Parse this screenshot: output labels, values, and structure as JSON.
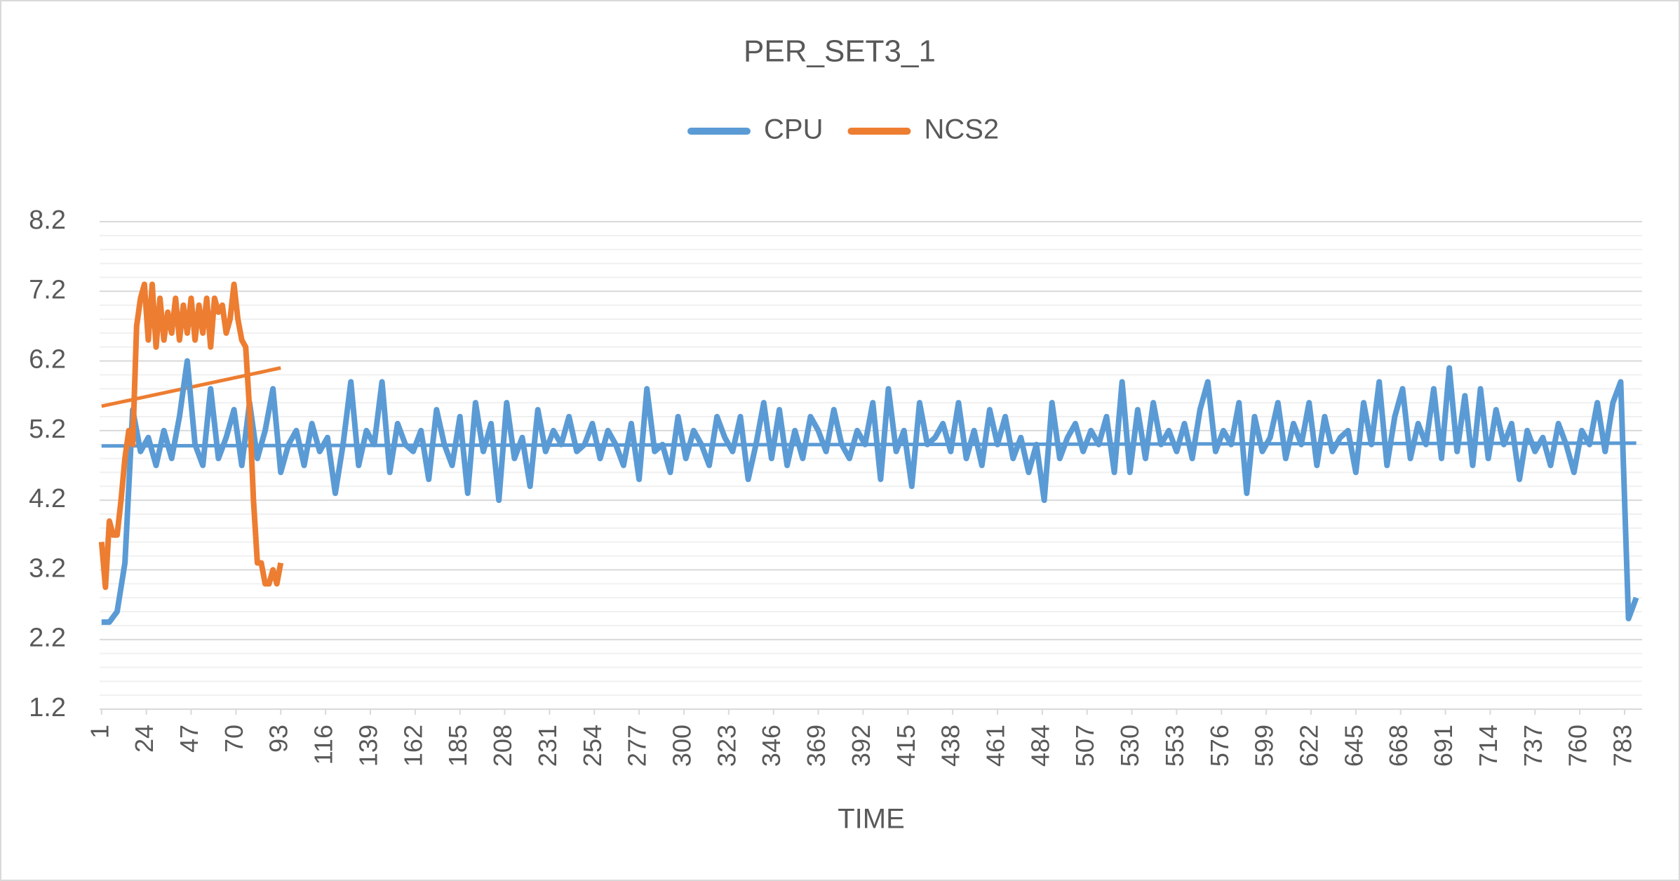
{
  "chart_data": {
    "type": "line",
    "title": "PER_SET3_1",
    "x_label": "TIME",
    "xlim": [
      0,
      792
    ],
    "xticks": [
      1,
      24,
      47,
      70,
      93,
      116,
      139,
      162,
      185,
      208,
      231,
      254,
      277,
      300,
      323,
      346,
      369,
      392,
      415,
      438,
      461,
      484,
      507,
      530,
      553,
      576,
      599,
      622,
      645,
      668,
      691,
      714,
      737,
      760,
      783
    ],
    "ylim": [
      1.2,
      8.2
    ],
    "yticks": [
      1.2,
      2.2,
      3.2,
      4.2,
      5.2,
      6.2,
      7.2,
      8.2
    ],
    "grid": true,
    "minor_grid": true,
    "legend": "top",
    "series": [
      {
        "name": "CPU",
        "color": "#5b9bd5",
        "x": [
          1,
          5,
          9,
          13,
          17,
          21,
          25,
          29,
          33,
          37,
          41,
          45,
          49,
          53,
          57,
          61,
          65,
          69,
          73,
          77,
          81,
          85,
          89,
          93,
          97,
          101,
          105,
          109,
          113,
          117,
          121,
          125,
          129,
          133,
          137,
          141,
          145,
          149,
          153,
          157,
          161,
          165,
          169,
          173,
          177,
          181,
          185,
          189,
          193,
          197,
          201,
          205,
          209,
          213,
          217,
          221,
          225,
          229,
          233,
          237,
          241,
          245,
          249,
          253,
          257,
          261,
          265,
          269,
          273,
          277,
          281,
          285,
          289,
          293,
          297,
          301,
          305,
          309,
          313,
          317,
          321,
          325,
          329,
          333,
          337,
          341,
          345,
          349,
          353,
          357,
          361,
          365,
          369,
          373,
          377,
          381,
          385,
          389,
          393,
          397,
          401,
          405,
          409,
          413,
          417,
          421,
          425,
          429,
          433,
          437,
          441,
          445,
          449,
          453,
          457,
          461,
          465,
          469,
          473,
          477,
          481,
          485,
          489,
          493,
          497,
          501,
          505,
          509,
          513,
          517,
          521,
          525,
          529,
          533,
          537,
          541,
          545,
          549,
          553,
          557,
          561,
          565,
          569,
          573,
          577,
          581,
          585,
          589,
          593,
          597,
          601,
          605,
          609,
          613,
          617,
          621,
          625,
          629,
          633,
          637,
          641,
          645,
          649,
          653,
          657,
          661,
          665,
          669,
          673,
          677,
          681,
          685,
          689,
          693,
          697,
          701,
          705,
          709,
          713,
          717,
          721,
          725,
          729,
          733,
          737,
          741,
          745,
          749,
          753,
          757,
          761,
          765,
          769,
          773,
          777,
          781,
          785,
          789
        ],
        "values": [
          2.45,
          2.45,
          2.6,
          3.3,
          5.5,
          4.9,
          5.1,
          4.7,
          5.2,
          4.8,
          5.4,
          6.2,
          5.0,
          4.7,
          5.8,
          4.8,
          5.1,
          5.5,
          4.7,
          5.6,
          4.8,
          5.2,
          5.8,
          4.6,
          5.0,
          5.2,
          4.7,
          5.3,
          4.9,
          5.1,
          4.3,
          5.0,
          5.9,
          4.7,
          5.2,
          5.0,
          5.9,
          4.6,
          5.3,
          5.0,
          4.9,
          5.2,
          4.5,
          5.5,
          5.0,
          4.7,
          5.4,
          4.3,
          5.6,
          4.9,
          5.3,
          4.2,
          5.6,
          4.8,
          5.1,
          4.4,
          5.5,
          4.9,
          5.2,
          5.0,
          5.4,
          4.9,
          5.0,
          5.3,
          4.8,
          5.2,
          5.0,
          4.7,
          5.3,
          4.5,
          5.8,
          4.9,
          5.0,
          4.6,
          5.4,
          4.8,
          5.2,
          5.0,
          4.7,
          5.4,
          5.1,
          4.9,
          5.4,
          4.5,
          5.0,
          5.6,
          4.8,
          5.5,
          4.7,
          5.2,
          4.8,
          5.4,
          5.2,
          4.9,
          5.5,
          5.0,
          4.8,
          5.2,
          5.0,
          5.6,
          4.5,
          5.8,
          4.9,
          5.2,
          4.4,
          5.6,
          5.0,
          5.1,
          5.3,
          4.9,
          5.6,
          4.8,
          5.2,
          4.7,
          5.5,
          5.0,
          5.4,
          4.8,
          5.1,
          4.6,
          5.0,
          4.2,
          5.6,
          4.8,
          5.1,
          5.3,
          4.9,
          5.2,
          5.0,
          5.4,
          4.6,
          5.9,
          4.6,
          5.5,
          4.8,
          5.6,
          5.0,
          5.2,
          4.9,
          5.3,
          4.8,
          5.5,
          5.9,
          4.9,
          5.2,
          5.0,
          5.6,
          4.3,
          5.4,
          4.9,
          5.1,
          5.6,
          4.8,
          5.3,
          5.0,
          5.6,
          4.7,
          5.4,
          4.9,
          5.1,
          5.2,
          4.6,
          5.6,
          5.0,
          5.9,
          4.7,
          5.4,
          5.8,
          4.8,
          5.3,
          5.0,
          5.8,
          4.8,
          6.1,
          4.9,
          5.7,
          4.7,
          5.8,
          4.8,
          5.5,
          5.0,
          5.3,
          4.5,
          5.2,
          4.9,
          5.1,
          4.7,
          5.3,
          5.0,
          4.6,
          5.2,
          5.0,
          5.6,
          4.9,
          5.6,
          5.9,
          2.5,
          2.8
        ],
        "trendline": {
          "x": [
            1,
            789
          ],
          "values": [
            4.98,
            5.02
          ]
        }
      },
      {
        "name": "NCS2",
        "color": "#ed7d31",
        "x": [
          1,
          3,
          5,
          7,
          9,
          11,
          13,
          15,
          17,
          19,
          21,
          23,
          25,
          27,
          29,
          31,
          33,
          35,
          37,
          39,
          41,
          43,
          45,
          47,
          49,
          51,
          53,
          55,
          57,
          59,
          61,
          63,
          65,
          67,
          69,
          71,
          73,
          75,
          77,
          79,
          81,
          83,
          85,
          87,
          89,
          91,
          93
        ],
        "values": [
          3.6,
          2.95,
          3.9,
          3.7,
          3.7,
          4.2,
          4.8,
          5.2,
          5.0,
          6.7,
          7.1,
          7.3,
          6.5,
          7.3,
          6.4,
          7.1,
          6.5,
          6.9,
          6.6,
          7.1,
          6.5,
          7.0,
          6.6,
          7.1,
          6.5,
          7.0,
          6.6,
          7.1,
          6.4,
          7.1,
          6.9,
          7.0,
          6.6,
          6.8,
          7.3,
          6.8,
          6.5,
          6.4,
          5.5,
          4.2,
          3.3,
          3.3,
          3.0,
          3.0,
          3.2,
          3.0,
          3.3
        ],
        "trendline": {
          "x": [
            1,
            93
          ],
          "values": [
            5.55,
            6.1
          ]
        }
      }
    ]
  }
}
